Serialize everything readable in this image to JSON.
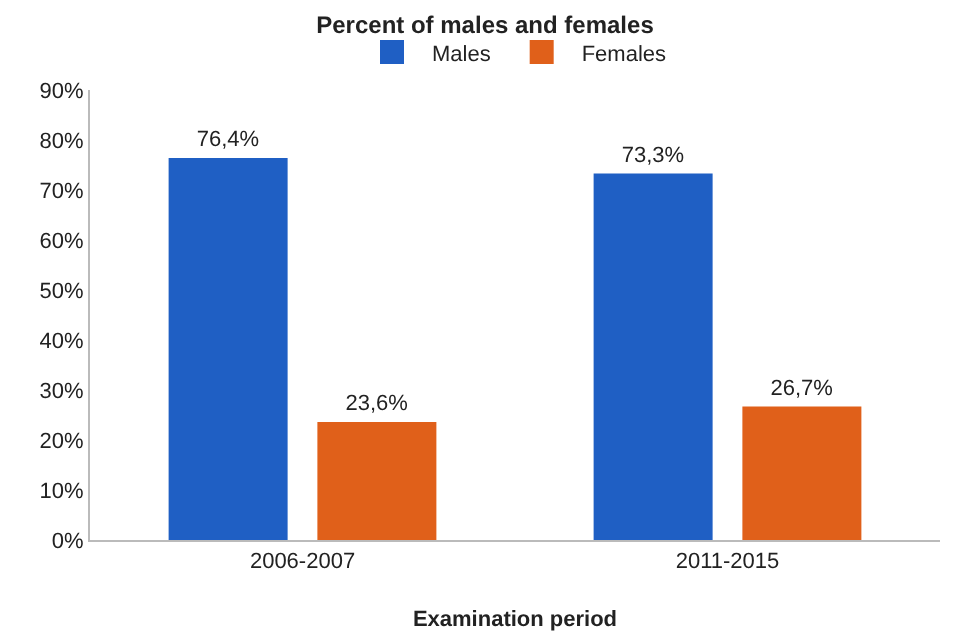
{
  "chart_data": {
    "type": "bar",
    "title": "Percent of males and females",
    "xlabel": "Examination period",
    "categories": [
      "2006-2007",
      "2011-2015"
    ],
    "series": [
      {
        "name": "Males",
        "color": "#1f5fc4",
        "values": [
          76.4,
          73.3
        ],
        "value_labels": [
          "76,4%",
          "73,3%"
        ]
      },
      {
        "name": "Females",
        "color": "#e0601a",
        "values": [
          23.6,
          26.7
        ],
        "value_labels": [
          "23,6%",
          "26,7%"
        ]
      }
    ],
    "ylim": [
      0,
      90
    ],
    "yticks": [
      {
        "value": 0,
        "label": "0%"
      },
      {
        "value": 10,
        "label": "10%"
      },
      {
        "value": 20,
        "label": "20%"
      },
      {
        "value": 30,
        "label": "30%"
      },
      {
        "value": 40,
        "label": "40%"
      },
      {
        "value": 50,
        "label": "50%"
      },
      {
        "value": 60,
        "label": "60%"
      },
      {
        "value": 70,
        "label": "70%"
      },
      {
        "value": 80,
        "label": "80%"
      },
      {
        "value": 90,
        "label": "90%"
      }
    ],
    "grid": false,
    "legend": "top"
  }
}
